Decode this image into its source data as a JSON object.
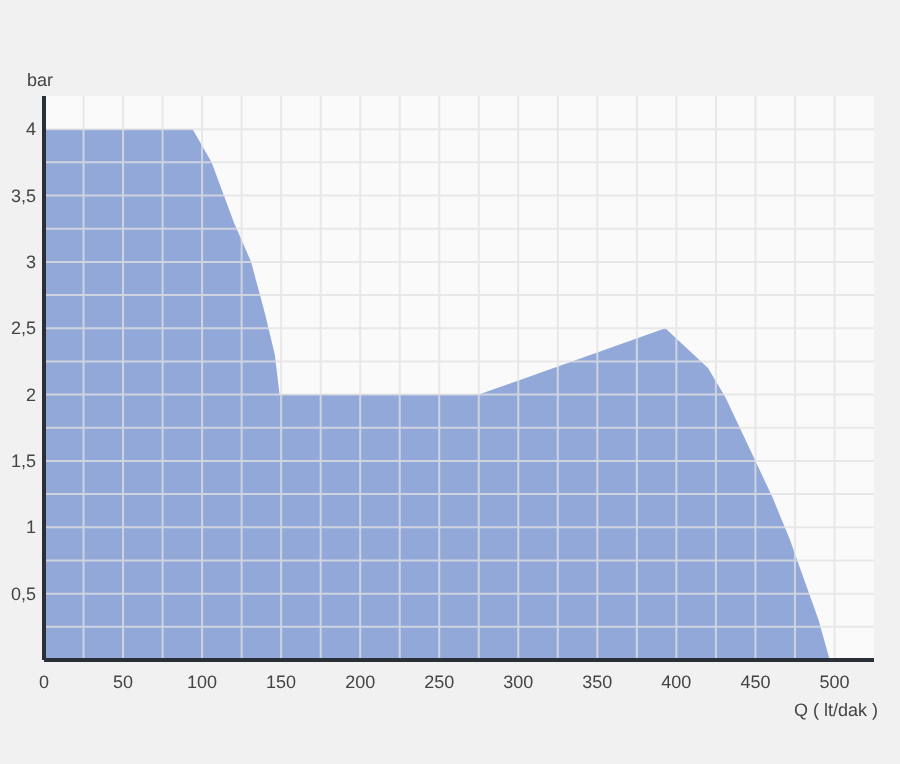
{
  "chart_data": {
    "type": "area",
    "xlabel": "Q ( lt/dak )",
    "ylabel": "bar",
    "x": [
      0,
      94,
      106,
      120,
      131,
      140,
      146,
      149,
      275,
      393,
      420,
      431,
      448,
      461,
      472,
      481,
      490,
      497
    ],
    "series": [
      {
        "color": "#92a8d8",
        "values": [
          4,
          4,
          3.75,
          3.3,
          3,
          2.6,
          2.3,
          2,
          2,
          2.5,
          2.2,
          1.98,
          1.55,
          1.22,
          0.9,
          0.6,
          0.3,
          0
        ]
      }
    ],
    "xlim": [
      0,
      525
    ],
    "ylim": [
      0,
      4.25
    ],
    "xticks": [
      0,
      {
        "value": 25,
        "label": null
      },
      50,
      {
        "value": 75,
        "label": null
      },
      100,
      {
        "value": 125,
        "label": null
      },
      150,
      {
        "value": 175,
        "label": null
      },
      200,
      {
        "value": 225,
        "label": null
      },
      250,
      {
        "value": 275,
        "label": null
      },
      300,
      {
        "value": 325,
        "label": null
      },
      350,
      {
        "value": 375,
        "label": null
      },
      400,
      {
        "value": 425,
        "label": null
      },
      450,
      {
        "value": 475,
        "label": null
      },
      500
    ],
    "yticks": [
      {
        "value": 0,
        "label": null
      },
      {
        "value": 0.25,
        "label": null
      },
      {
        "value": 0.5,
        "label": "0,5"
      },
      {
        "value": 0.75,
        "label": null
      },
      1,
      {
        "value": 1.25,
        "label": null
      },
      {
        "value": 1.5,
        "label": "1,5"
      },
      {
        "value": 1.75,
        "label": null
      },
      2,
      {
        "value": 2.25,
        "label": null
      },
      {
        "value": 2.5,
        "label": "2,5"
      },
      {
        "value": 2.75,
        "label": null
      },
      3,
      {
        "value": 3.25,
        "label": null
      },
      {
        "value": 3.5,
        "label": "3,5"
      },
      {
        "value": 3.75,
        "label": null
      },
      4
    ],
    "grid": true
  }
}
